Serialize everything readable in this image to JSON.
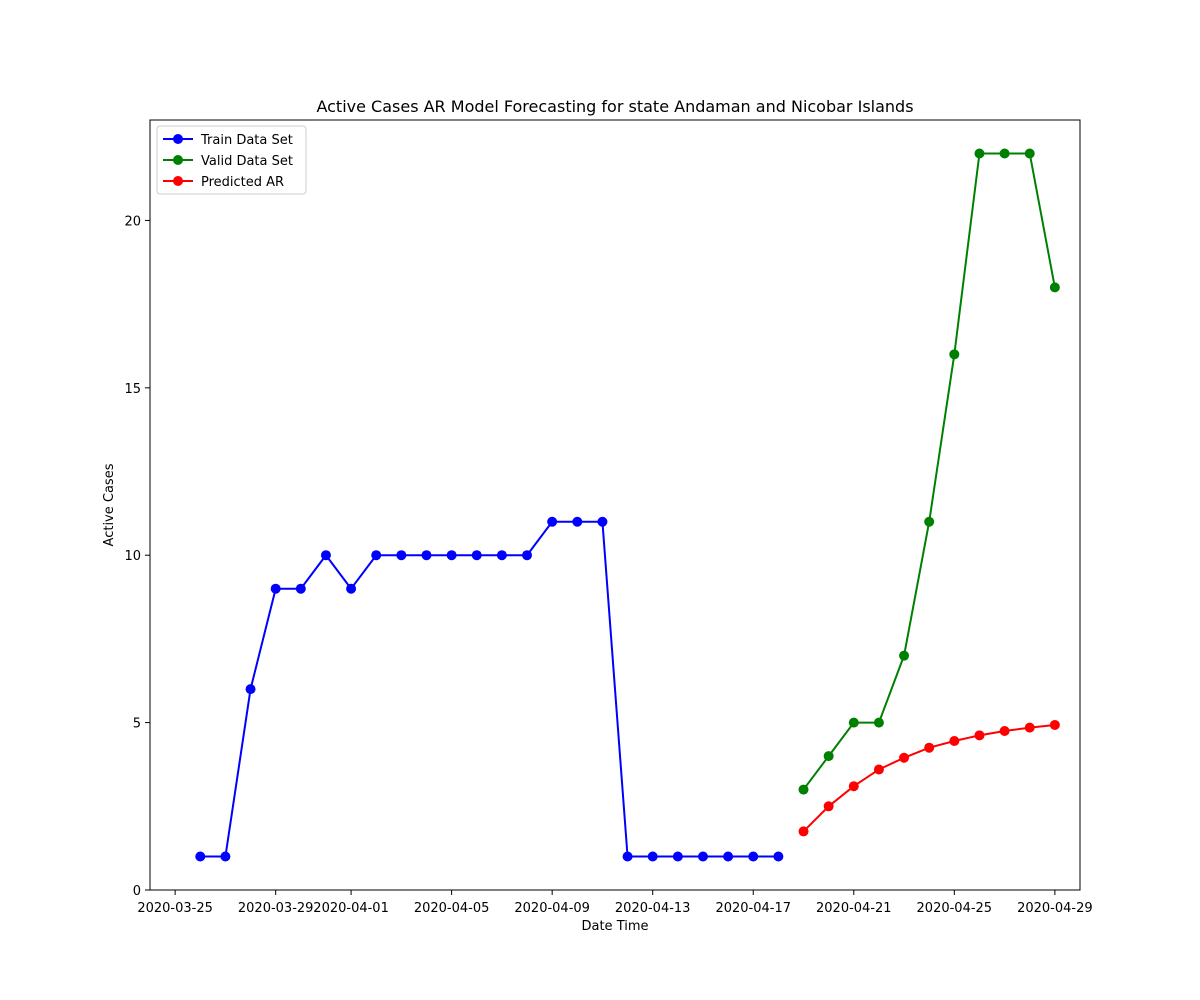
{
  "chart_data": {
    "type": "line",
    "title": "Active Cases AR Model Forecasting for state Andaman and Nicobar Islands",
    "xlabel": "Date Time",
    "ylabel": "Active Cases",
    "xlim": [
      "2020-03-24",
      "2020-04-30"
    ],
    "ylim": [
      0,
      23
    ],
    "x_ticks": [
      "2020-03-25",
      "2020-03-29",
      "2020-04-01",
      "2020-04-05",
      "2020-04-09",
      "2020-04-13",
      "2020-04-17",
      "2020-04-21",
      "2020-04-25",
      "2020-04-29"
    ],
    "y_ticks": [
      0,
      5,
      10,
      15,
      20
    ],
    "grid": false,
    "legend": "top-left",
    "series": [
      {
        "name": "Train Data Set",
        "color": "#0000ff",
        "x": [
          "2020-03-26",
          "2020-03-27",
          "2020-03-28",
          "2020-03-29",
          "2020-03-30",
          "2020-03-31",
          "2020-04-01",
          "2020-04-02",
          "2020-04-03",
          "2020-04-04",
          "2020-04-05",
          "2020-04-06",
          "2020-04-07",
          "2020-04-08",
          "2020-04-09",
          "2020-04-10",
          "2020-04-11",
          "2020-04-12",
          "2020-04-13",
          "2020-04-14",
          "2020-04-15",
          "2020-04-16",
          "2020-04-17",
          "2020-04-18"
        ],
        "values": [
          1,
          1,
          6,
          9,
          9,
          10,
          9,
          10,
          10,
          10,
          10,
          10,
          10,
          10,
          11,
          11,
          11,
          1,
          1,
          1,
          1,
          1,
          1,
          1
        ]
      },
      {
        "name": "Valid Data Set",
        "color": "#008000",
        "x": [
          "2020-04-19",
          "2020-04-20",
          "2020-04-21",
          "2020-04-22",
          "2020-04-23",
          "2020-04-24",
          "2020-04-25",
          "2020-04-26",
          "2020-04-27",
          "2020-04-28",
          "2020-04-29"
        ],
        "values": [
          3,
          4,
          5,
          5,
          7,
          11,
          16,
          22,
          22,
          22,
          18
        ]
      },
      {
        "name": "Predicted AR",
        "color": "#ff0000",
        "x": [
          "2020-04-19",
          "2020-04-20",
          "2020-04-21",
          "2020-04-22",
          "2020-04-23",
          "2020-04-24",
          "2020-04-25",
          "2020-04-26",
          "2020-04-27",
          "2020-04-28",
          "2020-04-29"
        ],
        "values": [
          1.75,
          2.5,
          3.1,
          3.6,
          3.95,
          4.25,
          4.45,
          4.62,
          4.75,
          4.85,
          4.93
        ]
      }
    ]
  }
}
